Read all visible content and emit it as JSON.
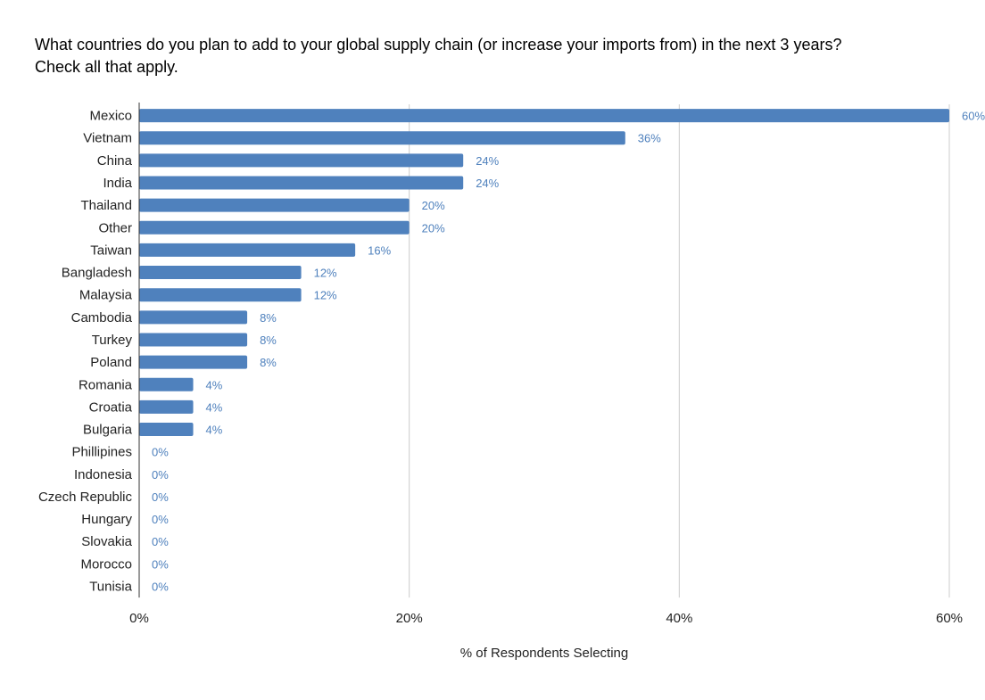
{
  "chart_data": {
    "type": "bar",
    "orientation": "horizontal",
    "title_lines": [
      "What countries do you plan to add to your global supply chain (or increase your imports from) in the next 3 years?",
      "Check all that apply."
    ],
    "categories": [
      "Mexico",
      "Vietnam",
      "China",
      "India",
      "Thailand",
      "Other",
      "Taiwan",
      "Bangladesh",
      "Malaysia",
      "Cambodia",
      "Turkey",
      "Poland",
      "Romania",
      "Croatia",
      "Bulgaria",
      "Phillipines",
      "Indonesia",
      "Czech Republic",
      "Hungary",
      "Slovakia",
      "Morocco",
      "Tunisia"
    ],
    "values": [
      60,
      36,
      24,
      24,
      20,
      20,
      16,
      12,
      12,
      8,
      8,
      8,
      4,
      4,
      4,
      0,
      0,
      0,
      0,
      0,
      0,
      0
    ],
    "value_labels": [
      "60%",
      "36%",
      "24%",
      "24%",
      "20%",
      "20%",
      "16%",
      "12%",
      "12%",
      "8%",
      "8%",
      "8%",
      "4%",
      "4%",
      "4%",
      "0%",
      "0%",
      "0%",
      "0%",
      "0%",
      "0%",
      "0%"
    ],
    "xlabel": "% of Respondents Selecting",
    "xlim": [
      0,
      60
    ],
    "xticks": [
      0,
      20,
      40,
      60
    ],
    "xtick_labels": [
      "0%",
      "20%",
      "40%",
      "60%"
    ],
    "grid": true,
    "legend": "none",
    "colors": {
      "bar": "#4f81bd",
      "label": "#4f81bd",
      "grid": "#cccccc",
      "axis": "#333333"
    }
  }
}
